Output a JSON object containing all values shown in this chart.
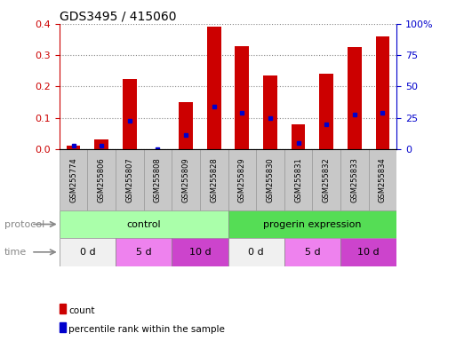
{
  "title": "GDS3495 / 415060",
  "samples": [
    "GSM255774",
    "GSM255806",
    "GSM255807",
    "GSM255808",
    "GSM255809",
    "GSM255828",
    "GSM255829",
    "GSM255830",
    "GSM255831",
    "GSM255832",
    "GSM255833",
    "GSM255834"
  ],
  "red_values": [
    0.01,
    0.03,
    0.225,
    0.0,
    0.15,
    0.39,
    0.33,
    0.235,
    0.08,
    0.24,
    0.325,
    0.36
  ],
  "blue_values": [
    0.01,
    0.01,
    0.09,
    0.0,
    0.045,
    0.135,
    0.115,
    0.1,
    0.02,
    0.08,
    0.11,
    0.115
  ],
  "ylim_left": [
    0,
    0.4
  ],
  "ylim_right": [
    0,
    100
  ],
  "yticks_left": [
    0,
    0.1,
    0.2,
    0.3,
    0.4
  ],
  "yticks_right": [
    0,
    25,
    50,
    75,
    100
  ],
  "ytick_labels_right": [
    "0",
    "25",
    "50",
    "75",
    "100%"
  ],
  "protocol_groups": [
    {
      "label": "control",
      "start": 0,
      "end": 6,
      "color": "#aaffaa"
    },
    {
      "label": "progerin expression",
      "start": 6,
      "end": 12,
      "color": "#55dd55"
    }
  ],
  "time_groups": [
    {
      "label": "0 d",
      "start": 0,
      "end": 2,
      "color": "#f0f0f0"
    },
    {
      "label": "5 d",
      "start": 2,
      "end": 4,
      "color": "#ee82ee"
    },
    {
      "label": "10 d",
      "start": 4,
      "end": 6,
      "color": "#cc44cc"
    },
    {
      "label": "0 d",
      "start": 6,
      "end": 8,
      "color": "#f0f0f0"
    },
    {
      "label": "5 d",
      "start": 8,
      "end": 10,
      "color": "#ee82ee"
    },
    {
      "label": "10 d",
      "start": 10,
      "end": 12,
      "color": "#cc44cc"
    }
  ],
  "bar_color": "#cc0000",
  "dot_color": "#0000cc",
  "grid_color": "#888888",
  "axis_color_left": "#cc0000",
  "axis_color_right": "#0000cc",
  "legend_items": [
    {
      "label": "count",
      "color": "#cc0000"
    },
    {
      "label": "percentile rank within the sample",
      "color": "#0000cc"
    }
  ],
  "protocol_label": "protocol",
  "time_label": "time",
  "bar_width": 0.5,
  "tick_label_bg": "#c8c8c8",
  "label_color": "#888888"
}
